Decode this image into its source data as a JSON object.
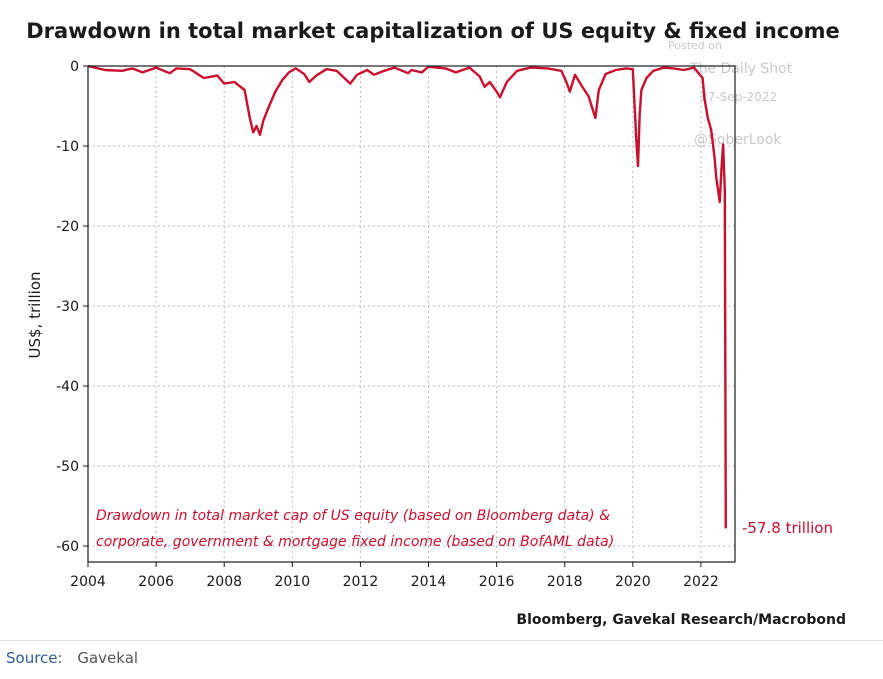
{
  "colors": {
    "line": "#c8102e",
    "grid": "#b8b8b8",
    "axis": "#1a1a1a",
    "watermark": "#c9c9c9",
    "source_label": "#2f5d9a"
  },
  "watermark": {
    "line1": "Posted on",
    "line2": "The Daily Shot",
    "line3": "27-Sep-2022",
    "line4": "@SoberLook"
  },
  "annotation": {
    "line1": "Drawdown in total market cap of US equity (based on Bloomberg data) &",
    "line2": "corporate, government & mortgage fixed income (based on BofAML data)",
    "end_label": "-57.8 trillion"
  },
  "footer": {
    "source_label": "Source:",
    "source_value": "Gavekal"
  },
  "chart_data": {
    "type": "line",
    "title": "Drawdown in total market capitalization of US equity & fixed income",
    "xlabel": "",
    "ylabel": "US$, trillion",
    "credit": "Bloomberg, Gavekal Research/Macrobond",
    "xlim": [
      2004,
      2023
    ],
    "ylim": [
      -62,
      0
    ],
    "xticks": [
      2004,
      2006,
      2008,
      2010,
      2012,
      2014,
      2016,
      2018,
      2020,
      2022
    ],
    "yticks": [
      0,
      -10,
      -20,
      -30,
      -40,
      -50,
      -60
    ],
    "grid": true,
    "series": [
      {
        "name": "Drawdown",
        "x": [
          2004.0,
          2004.5,
          2005.0,
          2005.3,
          2005.6,
          2006.0,
          2006.4,
          2006.6,
          2007.0,
          2007.4,
          2007.8,
          2008.0,
          2008.3,
          2008.6,
          2008.75,
          2008.85,
          2008.95,
          2009.05,
          2009.15,
          2009.3,
          2009.5,
          2009.7,
          2009.9,
          2010.1,
          2010.35,
          2010.5,
          2010.7,
          2011.0,
          2011.3,
          2011.55,
          2011.7,
          2011.9,
          2012.2,
          2012.4,
          2012.7,
          2013.0,
          2013.4,
          2013.5,
          2013.8,
          2014.0,
          2014.5,
          2014.8,
          2015.2,
          2015.5,
          2015.65,
          2015.8,
          2016.0,
          2016.1,
          2016.3,
          2016.6,
          2017.0,
          2017.5,
          2017.9,
          2018.05,
          2018.15,
          2018.3,
          2018.5,
          2018.7,
          2018.9,
          2019.0,
          2019.2,
          2019.5,
          2019.8,
          2020.0,
          2020.1,
          2020.15,
          2020.2,
          2020.25,
          2020.4,
          2020.6,
          2020.9,
          2021.2,
          2021.5,
          2021.8,
          2021.95,
          2022.05,
          2022.1,
          2022.2,
          2022.3,
          2022.4,
          2022.45,
          2022.55,
          2022.6,
          2022.65,
          2022.7,
          2022.73
        ],
        "values": [
          0,
          -0.5,
          -0.6,
          -0.3,
          -0.8,
          -0.2,
          -0.9,
          -0.3,
          -0.4,
          -1.5,
          -1.2,
          -2.2,
          -2.0,
          -3.0,
          -6.5,
          -8.3,
          -7.5,
          -8.6,
          -6.8,
          -5.2,
          -3.2,
          -1.8,
          -0.8,
          -0.3,
          -1.0,
          -2.0,
          -1.2,
          -0.4,
          -0.6,
          -1.6,
          -2.2,
          -1.1,
          -0.5,
          -1.1,
          -0.6,
          -0.2,
          -0.9,
          -0.5,
          -0.8,
          -0.1,
          -0.3,
          -0.8,
          -0.2,
          -1.3,
          -2.6,
          -2.0,
          -3.2,
          -3.9,
          -2.0,
          -0.6,
          -0.2,
          -0.3,
          -0.6,
          -2.0,
          -3.2,
          -1.1,
          -2.5,
          -3.8,
          -6.5,
          -3.0,
          -1.0,
          -0.5,
          -0.3,
          -0.4,
          -9.0,
          -12.5,
          -6.0,
          -3.0,
          -1.5,
          -0.6,
          -0.2,
          -0.3,
          -0.5,
          -0.2,
          -1.0,
          -1.5,
          -4.0,
          -6.5,
          -8.0,
          -11.5,
          -14.0,
          -17.0,
          -13.0,
          -9.8,
          -15.5,
          -57.8
        ]
      }
    ]
  }
}
